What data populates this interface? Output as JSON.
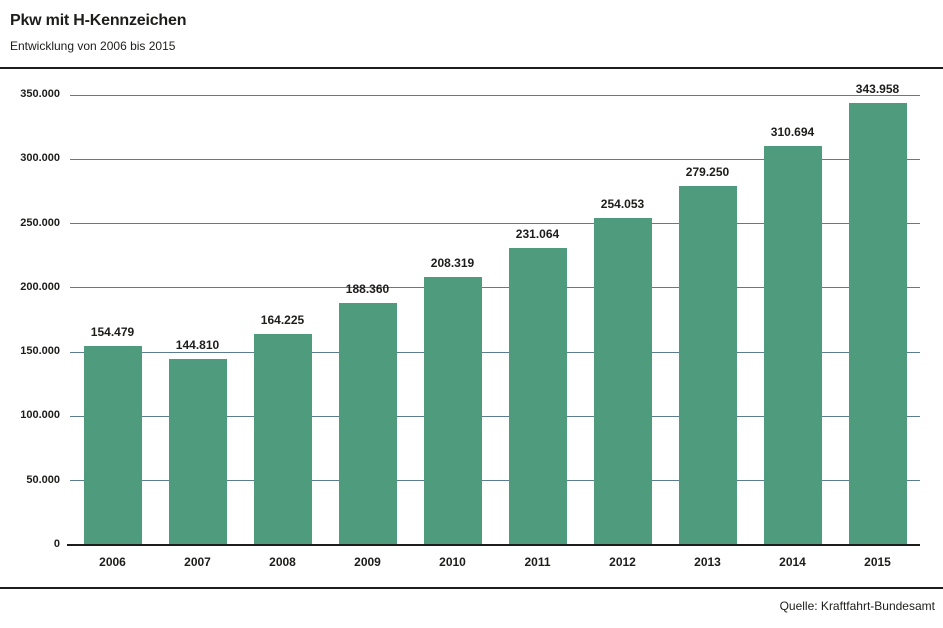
{
  "header": {
    "title": "Pkw mit H-Kennzeichen",
    "subtitle": "Entwicklung von 2006 bis 2015"
  },
  "footer": {
    "source": "Quelle: Kraftfahrt-Bundesamt"
  },
  "colors": {
    "bar": "#4e9b7e",
    "gridline": "#5c7d8d",
    "axis": "#1d1d1b",
    "text": "#1d1d1b",
    "background": "#ffffff"
  },
  "chart_data": {
    "type": "bar",
    "title": "Pkw mit H-Kennzeichen",
    "subtitle": "Entwicklung von 2006 bis 2015",
    "source": "Quelle: Kraftfahrt-Bundesamt",
    "categories": [
      "2006",
      "2007",
      "2008",
      "2009",
      "2010",
      "2011",
      "2012",
      "2013",
      "2014",
      "2015"
    ],
    "values": [
      154479,
      144810,
      164225,
      188360,
      208319,
      231064,
      254053,
      279250,
      310694,
      343958
    ],
    "value_labels": [
      "154.479",
      "144.810",
      "164.225",
      "188.360",
      "208.319",
      "231.064",
      "254.053",
      "279.250",
      "310.694",
      "343.958"
    ],
    "xlabel": "",
    "ylabel": "",
    "ylim": [
      0,
      350000
    ],
    "ytick_interval": 50000,
    "ytick_labels": [
      "0",
      "50.000",
      "100.000",
      "150.000",
      "200.000",
      "250.000",
      "300.000",
      "350.000"
    ],
    "grid": true,
    "legend": false,
    "bar_color": "#4e9b7e"
  }
}
